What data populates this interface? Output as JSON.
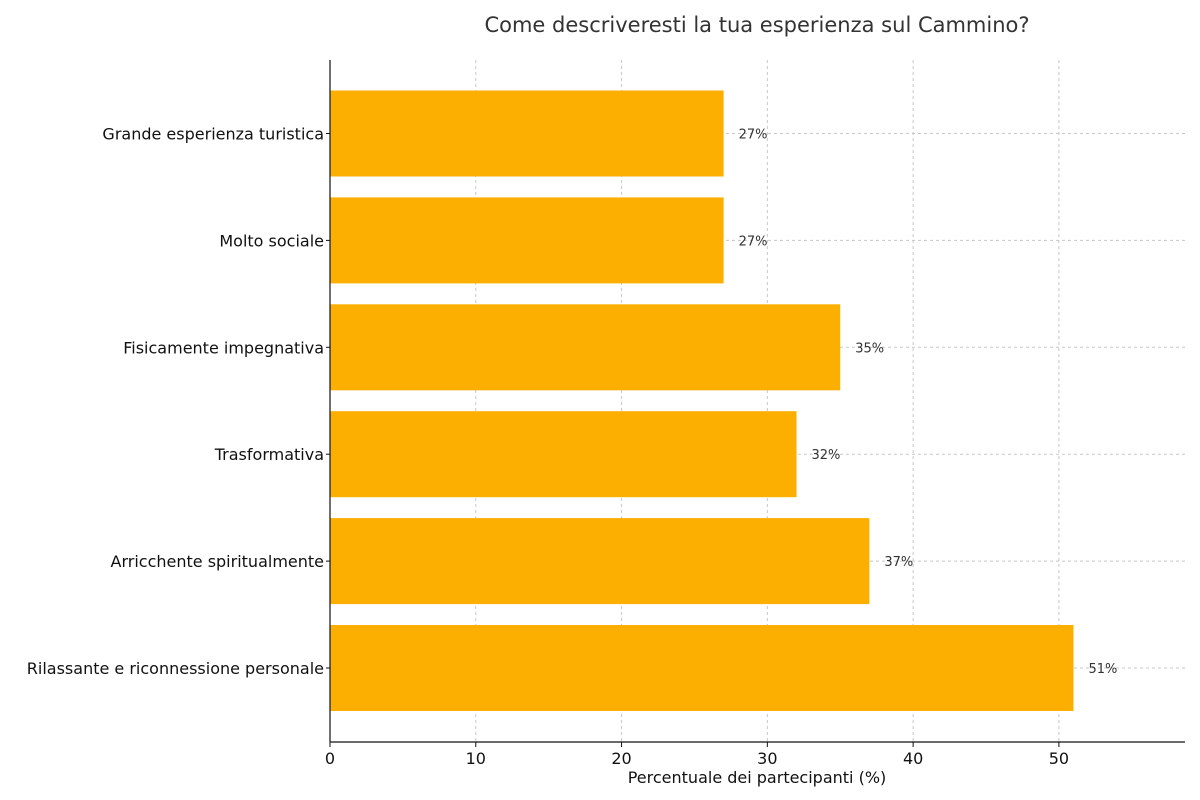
{
  "chart_data": {
    "type": "bar",
    "orientation": "horizontal",
    "title": "Come descriveresti la tua esperienza sul Cammino?",
    "xlabel": "Percentuale dei partecipanti (%)",
    "ylabel": "",
    "categories": [
      "Grande esperienza turistica",
      "Molto sociale",
      "Fisicamente impegnativa",
      "Trasformativa",
      "Arricchente spiritualmente",
      "Rilassante e riconnessione personale"
    ],
    "values": [
      27,
      27,
      35,
      32,
      37,
      51
    ],
    "data_labels": [
      "27%",
      "27%",
      "35%",
      "32%",
      "37%",
      "51%"
    ],
    "xlim": [
      0,
      58.65
    ],
    "xticks": [
      0,
      10,
      20,
      30,
      40,
      50
    ],
    "xtick_labels": [
      "0",
      "10",
      "20",
      "30",
      "40",
      "50"
    ],
    "grid": true,
    "bar_color": "#fcaf00",
    "text_color": "#333333"
  }
}
